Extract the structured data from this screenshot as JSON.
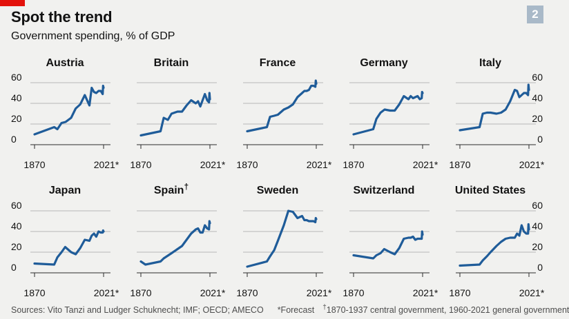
{
  "header": {
    "title": "Spot the trend",
    "subtitle": "Government spending, % of GDP",
    "chart_number": "2"
  },
  "footer": {
    "sources": "Sources: Vito Tanzi and Ludger Schuknecht; IMF; OECD; AMECO",
    "forecast_note": "*Forecast",
    "dagger_symbol": "†",
    "spain_note": "1870-1937 central government, 1960-2021 general government"
  },
  "colors": {
    "line": "#1f5c99",
    "grid": "#b7b7b7",
    "text": "#121212",
    "footer_text": "#4d4d4d",
    "brand_red": "#e3120b"
  },
  "chart_data": [
    {
      "type": "line",
      "title": "Austria",
      "ylim": [
        0,
        60
      ],
      "yticks": [
        "0",
        "20",
        "40",
        "60"
      ],
      "xtick_labels": [
        "1870",
        "2021*"
      ],
      "x": [
        1870,
        1913,
        1920,
        1929,
        1938,
        1950,
        1960,
        1970,
        1980,
        1990,
        1995,
        2000,
        2005,
        2010,
        2015,
        2019,
        2020,
        2021
      ],
      "values": [
        10,
        17,
        15,
        21,
        22,
        26,
        35,
        39,
        48,
        38,
        55,
        51,
        50,
        52,
        52,
        49,
        57,
        55
      ]
    },
    {
      "type": "line",
      "title": "Britain",
      "ylim": [
        0,
        60
      ],
      "yticks": [
        "0",
        "20",
        "40",
        "60"
      ],
      "xtick_labels": [
        "1870",
        "2021*"
      ],
      "x": [
        1870,
        1913,
        1920,
        1929,
        1937,
        1950,
        1960,
        1970,
        1980,
        1990,
        1995,
        2000,
        2005,
        2010,
        2015,
        2019,
        2020,
        2021
      ],
      "values": [
        9,
        13,
        26,
        24,
        30,
        32,
        32,
        38,
        43,
        40,
        42,
        37,
        43,
        49,
        43,
        41,
        50,
        44
      ]
    },
    {
      "type": "line",
      "title": "France",
      "ylim": [
        0,
        60
      ],
      "yticks": [
        "0",
        "20",
        "40",
        "60"
      ],
      "xtick_labels": [
        "1870",
        "2021*"
      ],
      "x": [
        1870,
        1913,
        1920,
        1929,
        1937,
        1950,
        1960,
        1970,
        1980,
        1990,
        1995,
        2000,
        2005,
        2010,
        2015,
        2019,
        2020,
        2021
      ],
      "values": [
        13,
        17,
        27,
        28,
        29,
        34,
        36,
        39,
        46,
        50,
        52,
        52,
        53,
        57,
        57,
        56,
        62,
        59
      ]
    },
    {
      "type": "line",
      "title": "Germany",
      "ylim": [
        0,
        60
      ],
      "yticks": [
        "0",
        "20",
        "40",
        "60"
      ],
      "xtick_labels": [
        "1870",
        "2021*"
      ],
      "x": [
        1870,
        1913,
        1920,
        1929,
        1938,
        1950,
        1960,
        1970,
        1980,
        1990,
        1995,
        2000,
        2005,
        2010,
        2015,
        2019,
        2020,
        2021
      ],
      "values": [
        10,
        15,
        25,
        31,
        34,
        33,
        33,
        39,
        47,
        44,
        47,
        45,
        46,
        47,
        44,
        45,
        51,
        50
      ]
    },
    {
      "type": "line",
      "title": "Italy",
      "ylim": [
        0,
        60
      ],
      "yticks": [
        "0",
        "20",
        "40",
        "60"
      ],
      "xtick_labels": [
        "1870",
        "2021*"
      ],
      "x": [
        1870,
        1913,
        1920,
        1929,
        1937,
        1950,
        1960,
        1970,
        1980,
        1990,
        1995,
        2000,
        2005,
        2010,
        2015,
        2019,
        2020,
        2021
      ],
      "values": [
        14,
        17,
        30,
        31,
        31,
        30,
        31,
        34,
        42,
        53,
        52,
        46,
        48,
        50,
        50,
        48,
        58,
        53
      ]
    },
    {
      "type": "line",
      "title": "Japan",
      "ylim": [
        0,
        60
      ],
      "yticks": [
        "0",
        "20",
        "40",
        "60"
      ],
      "xtick_labels": [
        "1870",
        "2021*"
      ],
      "x": [
        1870,
        1913,
        1920,
        1929,
        1937,
        1950,
        1960,
        1970,
        1980,
        1990,
        1995,
        2000,
        2005,
        2010,
        2015,
        2019,
        2020,
        2021
      ],
      "values": [
        9,
        8,
        15,
        20,
        25,
        20,
        18,
        24,
        32,
        31,
        36,
        38,
        35,
        40,
        39,
        39,
        41,
        40
      ]
    },
    {
      "type": "line",
      "title": "Spain",
      "ylim": [
        0,
        60
      ],
      "yticks": [
        "0",
        "20",
        "40",
        "60"
      ],
      "xtick_labels": [
        "1870",
        "2021*"
      ],
      "x": [
        1870,
        1880,
        1913,
        1920,
        1937,
        1960,
        1970,
        1980,
        1990,
        1995,
        2000,
        2005,
        2010,
        2015,
        2019,
        2020,
        2021
      ],
      "values": [
        11,
        8,
        11,
        14,
        19,
        26,
        32,
        38,
        42,
        43,
        39,
        39,
        46,
        43,
        42,
        50,
        48
      ]
    },
    {
      "type": "line",
      "title": "Sweden",
      "ylim": [
        0,
        60
      ],
      "yticks": [
        "0",
        "20",
        "40",
        "60"
      ],
      "xtick_labels": [
        "1870",
        "2021*"
      ],
      "x": [
        1870,
        1913,
        1920,
        1929,
        1937,
        1950,
        1960,
        1970,
        1980,
        1990,
        1995,
        2000,
        2005,
        2010,
        2015,
        2019,
        2020,
        2021
      ],
      "values": [
        6,
        11,
        16,
        22,
        31,
        46,
        60,
        59,
        53,
        55,
        51,
        51,
        50,
        50,
        50,
        49,
        53,
        52
      ]
    },
    {
      "type": "line",
      "title": "Switzerland",
      "ylim": [
        0,
        60
      ],
      "yticks": [
        "0",
        "20",
        "40",
        "60"
      ],
      "xtick_labels": [
        "1870",
        "2021*"
      ],
      "x": [
        1870,
        1913,
        1920,
        1929,
        1937,
        1950,
        1960,
        1970,
        1980,
        1990,
        1995,
        2000,
        2005,
        2010,
        2015,
        2019,
        2020,
        2021
      ],
      "values": [
        17,
        14,
        17,
        19,
        23,
        20,
        18,
        24,
        33,
        34,
        34,
        35,
        32,
        33,
        33,
        33,
        40,
        37
      ]
    },
    {
      "type": "line",
      "title": "United States",
      "ylim": [
        0,
        60
      ],
      "yticks": [
        "0",
        "20",
        "40",
        "60"
      ],
      "xtick_labels": [
        "1870",
        "2021*"
      ],
      "x": [
        1870,
        1913,
        1920,
        1929,
        1937,
        1950,
        1960,
        1970,
        1980,
        1990,
        1995,
        2000,
        2005,
        2010,
        2015,
        2019,
        2020,
        2021
      ],
      "values": [
        7,
        8,
        12,
        16,
        20,
        26,
        30,
        33,
        34,
        34,
        38,
        36,
        46,
        40,
        38,
        38,
        47,
        42
      ]
    }
  ]
}
